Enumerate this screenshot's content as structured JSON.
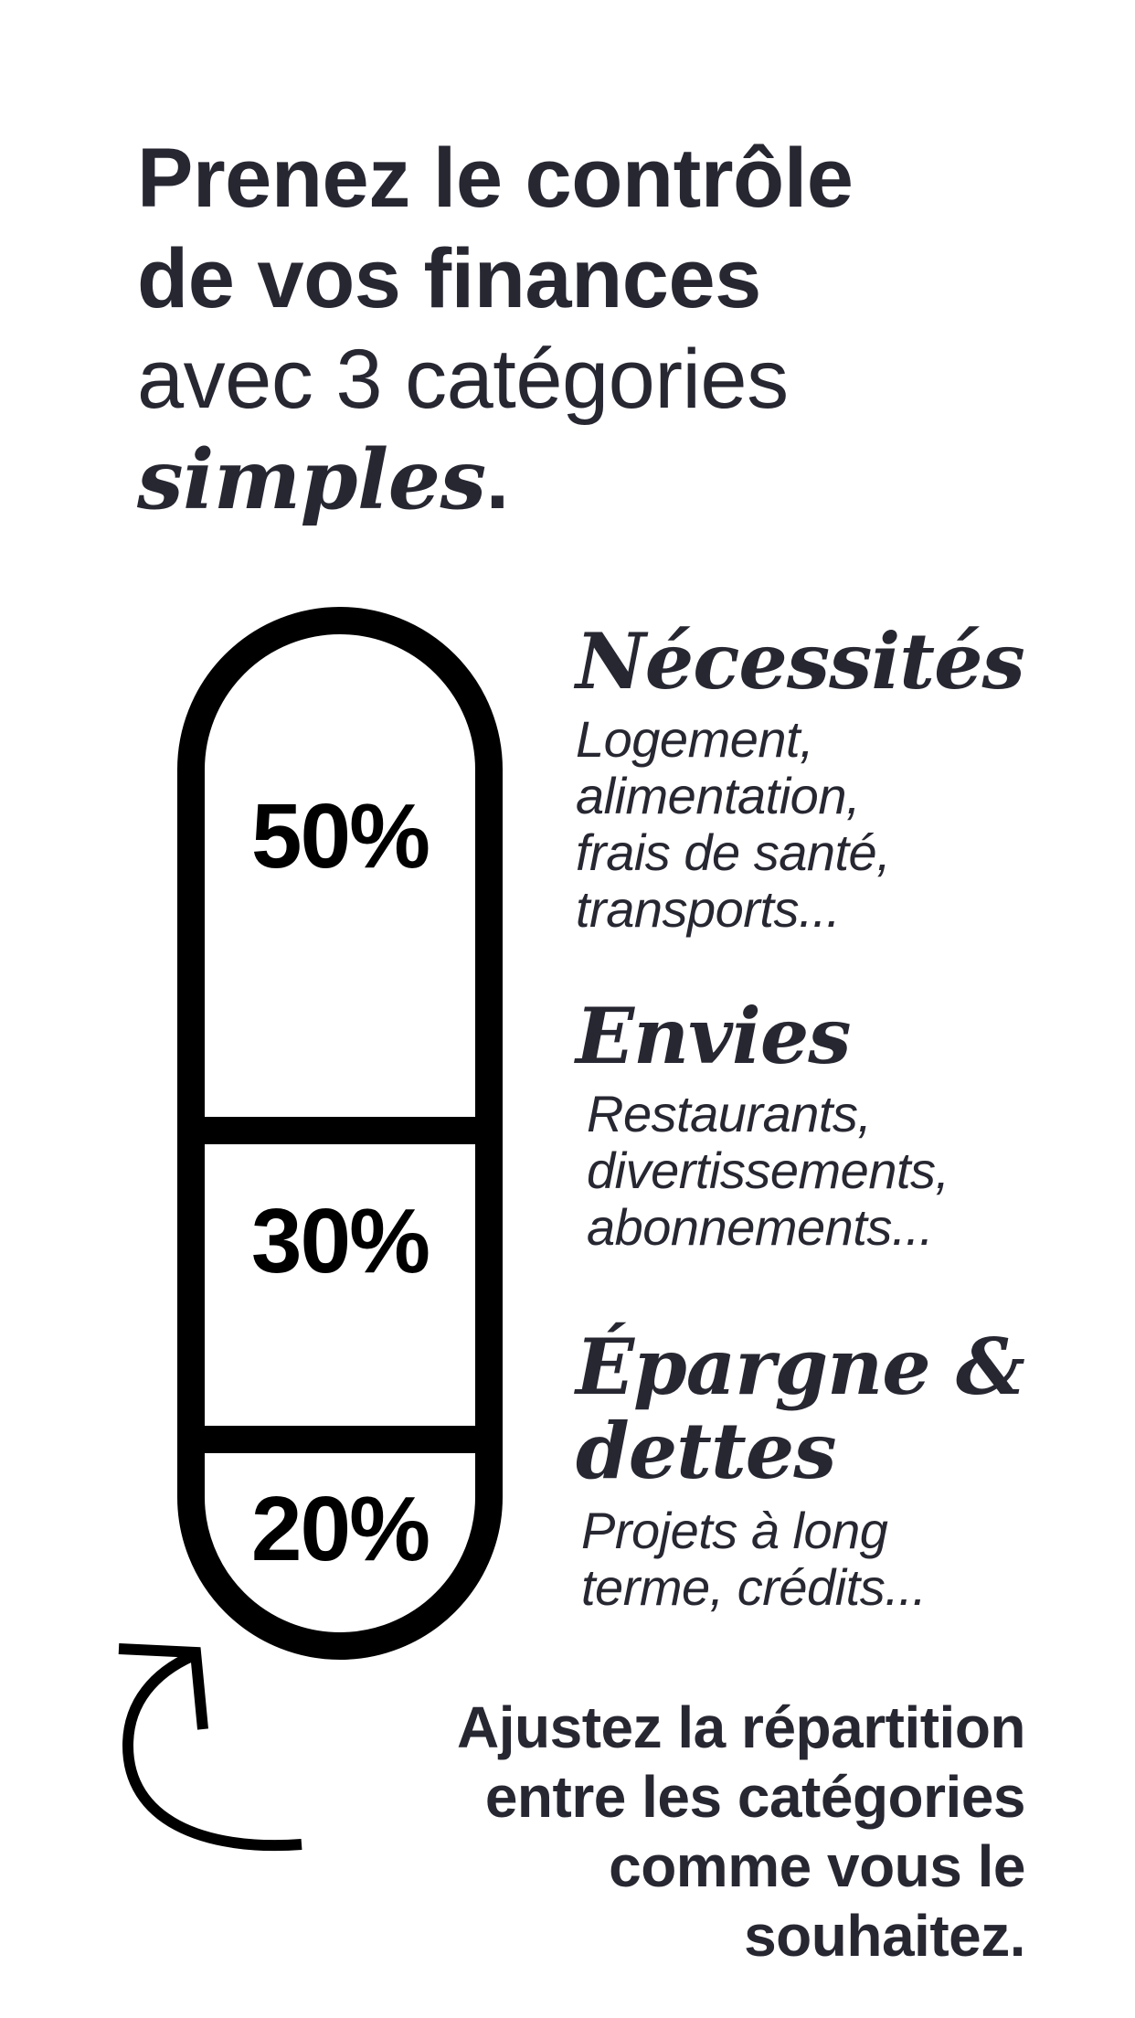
{
  "headline": {
    "line1": "Prenez le contrôle",
    "line2": "de vos finances",
    "line3": "avec 3 catégories",
    "emphasis": "simples",
    "end_punct": "."
  },
  "budget_split": {
    "necessities_percent": "50%",
    "wants_percent": "30%",
    "savings_percent": "20%",
    "necessities_value": 50,
    "wants_value": 30,
    "savings_value": 20
  },
  "categories": [
    {
      "title": "Nécessités",
      "description": "Logement, alimentation, frais de santé, transports..."
    },
    {
      "title": "Envies",
      "description": "Restaurants, divertissements, abonnements..."
    },
    {
      "title": "Épargne & dettes",
      "description": "Projets à long terme, crédits..."
    }
  ],
  "footer": {
    "note": "Ajustez la répartition entre les catégories comme vous le souhaitez."
  },
  "icons": {
    "arrow": "curved-arrow-up-icon"
  },
  "colors": {
    "text": "#272732",
    "pill": "#000000",
    "background": "#ffffff"
  }
}
